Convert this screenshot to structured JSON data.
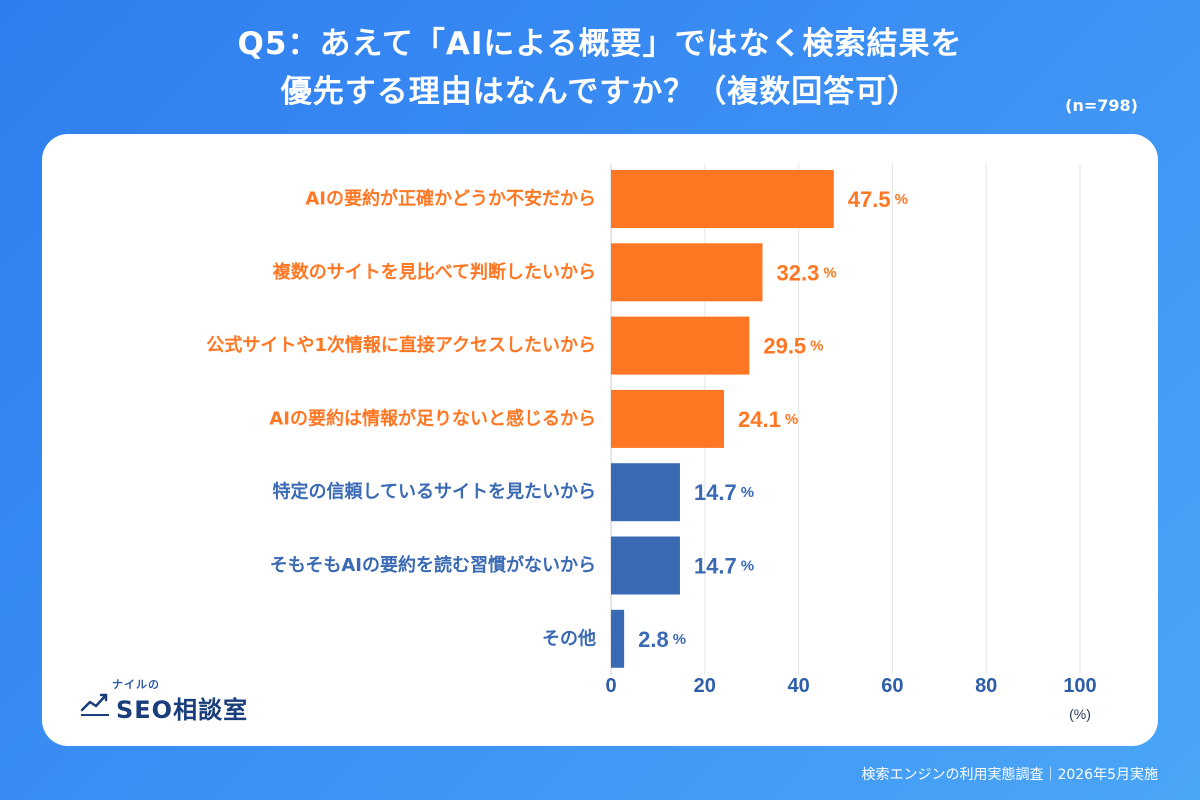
{
  "header": {
    "title_line1": "Q5：あえて「AIによる概要」ではなく検索結果を",
    "title_line2": "優先する理由はなんですか？（複数回答可）",
    "sample_size": "(n=798)"
  },
  "footer": {
    "source": "検索エンジンの利用実態調査｜2026年5月実施"
  },
  "logo": {
    "small_text": "ナイルの",
    "main_text": "SEO相談室"
  },
  "colors": {
    "highlight": "#ff7722",
    "standard": "#3a6ab4",
    "grid": "#e3e6ea",
    "axis_text": "#2f5ea9"
  },
  "chart_data": {
    "type": "bar",
    "orientation": "horizontal",
    "categories": [
      "AIの要約が正確かどうか不安だから",
      "複数のサイトを見比べて判断したいから",
      "公式サイトや1次情報に直接アクセスしたいから",
      "AIの要約は情報が足りないと感じるから",
      "特定の信頼しているサイトを見たいから",
      "そもそもAIの要約を読む習慣がないから",
      "その他"
    ],
    "values": [
      47.5,
      32.3,
      29.5,
      24.1,
      14.7,
      14.7,
      2.8
    ],
    "highlighted": [
      true,
      true,
      true,
      true,
      false,
      false,
      false
    ],
    "value_unit": "%",
    "xlim": [
      0,
      100
    ],
    "xticks": [
      0,
      20,
      40,
      60,
      80,
      100
    ],
    "xlabel": "(%)",
    "grid": true
  }
}
